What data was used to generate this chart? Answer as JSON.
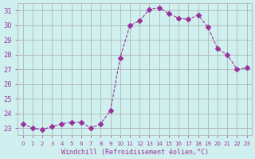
{
  "x": [
    0,
    1,
    2,
    3,
    4,
    5,
    6,
    7,
    8,
    9,
    10,
    11,
    12,
    13,
    14,
    15,
    16,
    17,
    18,
    19,
    20,
    21,
    22,
    23
  ],
  "y": [
    23.3,
    23.0,
    22.9,
    23.1,
    23.3,
    23.4,
    23.4,
    23.0,
    23.3,
    24.2,
    27.8,
    30.0,
    30.3,
    31.1,
    31.2,
    30.8,
    30.5,
    30.4,
    30.7,
    29.9,
    28.4,
    28.0,
    27.0,
    27.1
  ],
  "line_color": "#993399",
  "marker": "D",
  "marker_size": 3,
  "bg_color": "#d0f0f0",
  "grid_color": "#aaaaaa",
  "xlabel": "Windchill (Refroidissement éolien,°C)",
  "xlabel_color": "#993399",
  "tick_color": "#993399",
  "ylim_min": 22.5,
  "ylim_max": 31.5,
  "yticks": [
    23,
    24,
    25,
    26,
    27,
    28,
    29,
    30,
    31
  ],
  "xlim_min": -0.5,
  "xlim_max": 23.5
}
